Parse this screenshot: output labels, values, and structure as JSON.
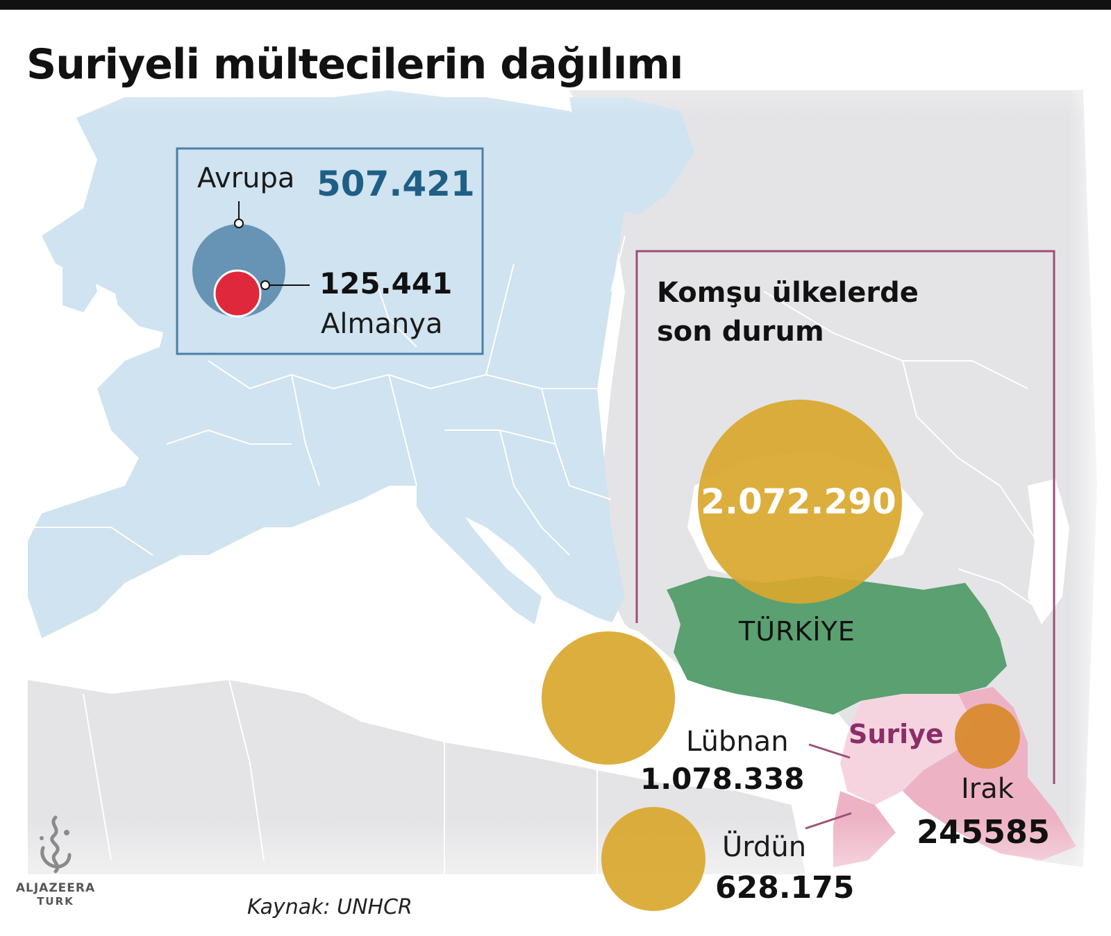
{
  "title": "Suriyeli mültecilerin dağılımı",
  "europe": {
    "label": "Avrupa",
    "value": "507.421",
    "germany_value": "125.441",
    "germany_label": "Almanya"
  },
  "neighbors": {
    "heading": "Komşu ülkelerde son durum",
    "turkey": {
      "label": "TÜRKİYE",
      "value": "2.072.290"
    },
    "syria": {
      "label": "Suriye"
    },
    "lebanon": {
      "label": "Lübnan",
      "value": "1.078.338"
    },
    "iraq": {
      "label": "Irak",
      "value": "245585"
    },
    "jordan": {
      "label": "Ürdün",
      "value": "628.175"
    }
  },
  "source": "Kaynak: UNHCR",
  "brand": {
    "name": "ALJAZEERA",
    "sub": "TURK"
  },
  "colors": {
    "sea": "#ffffff",
    "europe_land": "#cfe3f0",
    "other_land": "#e4e4e6",
    "borders": "#ffffff",
    "turkey": "#5aa070",
    "syria": "#f6d4df",
    "iraq": "#edb3c5",
    "bubble_gold": "#d9a72c",
    "bubble_iraq": "#d98a2e",
    "europe_bubble": "#5b89ad",
    "germany_bubble": "#e0283c",
    "europe_box": "#4b7fa6",
    "neighbors_box": "#9b4f76",
    "syria_text": "#8a2e6a",
    "europe_value": "#1f5f85"
  }
}
